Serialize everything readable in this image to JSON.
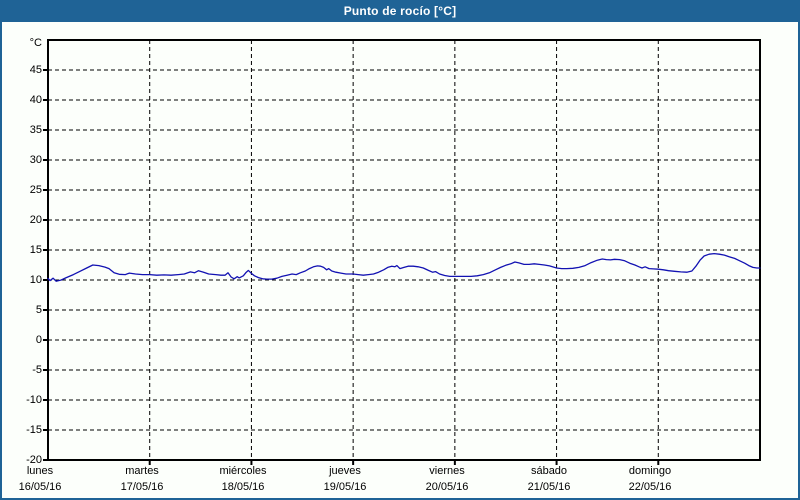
{
  "window": {
    "title": "Punto de rocío [°C]"
  },
  "colors": {
    "header_bg": "#1f6396",
    "frame_border": "#1f6396",
    "page_bg": "#fcfffb",
    "line": "#1212b2",
    "axis": "#000000",
    "title_text": "#ffffff"
  },
  "chart_data": {
    "type": "line",
    "title": "Punto de rocío [°C]",
    "y_unit_label": "°C",
    "ylabel": "",
    "xlabel": "",
    "ylim": [
      -20,
      50
    ],
    "ytick_step": 5,
    "ytick_labels": [
      45,
      40,
      35,
      30,
      25,
      20,
      15,
      10,
      5,
      0,
      -5,
      -10,
      -15,
      -20
    ],
    "xlim_days": [
      0,
      7
    ],
    "grid": "dashed horizontal every 5°C and dashed vertical at each day boundary",
    "legend": "none",
    "x_days": [
      {
        "name": "lunes",
        "date": "16/05/16"
      },
      {
        "name": "martes",
        "date": "17/05/16"
      },
      {
        "name": "miércoles",
        "date": "18/05/16"
      },
      {
        "name": "jueves",
        "date": "19/05/16"
      },
      {
        "name": "viernes",
        "date": "20/05/16"
      },
      {
        "name": "sábado",
        "date": "21/05/16"
      },
      {
        "name": "domingo",
        "date": "22/05/16"
      }
    ],
    "series": [
      {
        "name": "Punto de rocío",
        "color": "#1212b2",
        "points": [
          [
            0.0,
            10.25
          ],
          [
            0.02,
            9.9
          ],
          [
            0.05,
            10.3
          ],
          [
            0.08,
            9.8
          ],
          [
            0.13,
            10.0
          ],
          [
            0.18,
            10.4
          ],
          [
            0.25,
            10.9
          ],
          [
            0.31,
            11.4
          ],
          [
            0.38,
            12.0
          ],
          [
            0.44,
            12.5
          ],
          [
            0.5,
            12.4
          ],
          [
            0.56,
            12.15
          ],
          [
            0.6,
            11.9
          ],
          [
            0.65,
            11.2
          ],
          [
            0.7,
            10.95
          ],
          [
            0.76,
            10.9
          ],
          [
            0.8,
            11.15
          ],
          [
            0.86,
            11.0
          ],
          [
            0.93,
            10.9
          ],
          [
            1.0,
            10.9
          ],
          [
            1.07,
            10.8
          ],
          [
            1.14,
            10.85
          ],
          [
            1.21,
            10.8
          ],
          [
            1.28,
            10.9
          ],
          [
            1.34,
            11.0
          ],
          [
            1.4,
            11.35
          ],
          [
            1.44,
            11.2
          ],
          [
            1.48,
            11.55
          ],
          [
            1.53,
            11.3
          ],
          [
            1.58,
            11.0
          ],
          [
            1.65,
            10.9
          ],
          [
            1.7,
            10.8
          ],
          [
            1.74,
            10.8
          ],
          [
            1.77,
            11.2
          ],
          [
            1.8,
            10.5
          ],
          [
            1.83,
            10.2
          ],
          [
            1.86,
            10.55
          ],
          [
            1.88,
            10.35
          ],
          [
            1.92,
            10.7
          ],
          [
            1.95,
            11.3
          ],
          [
            1.97,
            11.6
          ],
          [
            2.0,
            11.1
          ],
          [
            2.03,
            10.7
          ],
          [
            2.07,
            10.4
          ],
          [
            2.11,
            10.2
          ],
          [
            2.15,
            10.15
          ],
          [
            2.2,
            10.15
          ],
          [
            2.25,
            10.3
          ],
          [
            2.3,
            10.6
          ],
          [
            2.35,
            10.8
          ],
          [
            2.4,
            11.0
          ],
          [
            2.44,
            10.9
          ],
          [
            2.48,
            11.2
          ],
          [
            2.53,
            11.5
          ],
          [
            2.57,
            11.9
          ],
          [
            2.61,
            12.2
          ],
          [
            2.65,
            12.35
          ],
          [
            2.68,
            12.3
          ],
          [
            2.71,
            12.1
          ],
          [
            2.74,
            11.7
          ],
          [
            2.76,
            11.9
          ],
          [
            2.79,
            11.5
          ],
          [
            2.83,
            11.3
          ],
          [
            2.88,
            11.15
          ],
          [
            2.93,
            11.0
          ],
          [
            3.0,
            11.0
          ],
          [
            3.05,
            10.9
          ],
          [
            3.1,
            10.8
          ],
          [
            3.15,
            10.9
          ],
          [
            3.2,
            11.0
          ],
          [
            3.25,
            11.3
          ],
          [
            3.3,
            11.7
          ],
          [
            3.34,
            12.1
          ],
          [
            3.38,
            12.3
          ],
          [
            3.41,
            12.2
          ],
          [
            3.43,
            12.4
          ],
          [
            3.46,
            11.9
          ],
          [
            3.5,
            12.1
          ],
          [
            3.54,
            12.3
          ],
          [
            3.59,
            12.3
          ],
          [
            3.64,
            12.2
          ],
          [
            3.69,
            12.0
          ],
          [
            3.74,
            11.6
          ],
          [
            3.78,
            11.3
          ],
          [
            3.81,
            11.4
          ],
          [
            3.85,
            11.0
          ],
          [
            3.9,
            10.75
          ],
          [
            3.95,
            10.6
          ],
          [
            4.0,
            10.6
          ],
          [
            4.08,
            10.6
          ],
          [
            4.16,
            10.6
          ],
          [
            4.22,
            10.7
          ],
          [
            4.28,
            10.9
          ],
          [
            4.34,
            11.2
          ],
          [
            4.4,
            11.7
          ],
          [
            4.45,
            12.1
          ],
          [
            4.5,
            12.45
          ],
          [
            4.55,
            12.7
          ],
          [
            4.59,
            13.0
          ],
          [
            4.63,
            12.85
          ],
          [
            4.68,
            12.6
          ],
          [
            4.73,
            12.6
          ],
          [
            4.78,
            12.7
          ],
          [
            4.83,
            12.6
          ],
          [
            4.88,
            12.5
          ],
          [
            4.93,
            12.35
          ],
          [
            5.0,
            12.0
          ],
          [
            5.05,
            11.9
          ],
          [
            5.1,
            11.9
          ],
          [
            5.16,
            11.95
          ],
          [
            5.22,
            12.1
          ],
          [
            5.28,
            12.4
          ],
          [
            5.34,
            12.9
          ],
          [
            5.4,
            13.3
          ],
          [
            5.45,
            13.5
          ],
          [
            5.49,
            13.4
          ],
          [
            5.53,
            13.35
          ],
          [
            5.57,
            13.45
          ],
          [
            5.62,
            13.4
          ],
          [
            5.67,
            13.2
          ],
          [
            5.72,
            12.8
          ],
          [
            5.77,
            12.5
          ],
          [
            5.81,
            12.2
          ],
          [
            5.84,
            12.0
          ],
          [
            5.87,
            12.2
          ],
          [
            5.91,
            11.9
          ],
          [
            5.95,
            11.85
          ],
          [
            6.0,
            11.8
          ],
          [
            6.05,
            11.7
          ],
          [
            6.1,
            11.55
          ],
          [
            6.16,
            11.45
          ],
          [
            6.22,
            11.35
          ],
          [
            6.28,
            11.3
          ],
          [
            6.33,
            11.5
          ],
          [
            6.37,
            12.3
          ],
          [
            6.41,
            13.3
          ],
          [
            6.45,
            14.0
          ],
          [
            6.5,
            14.3
          ],
          [
            6.55,
            14.4
          ],
          [
            6.6,
            14.3
          ],
          [
            6.65,
            14.15
          ],
          [
            6.7,
            13.85
          ],
          [
            6.75,
            13.6
          ],
          [
            6.8,
            13.2
          ],
          [
            6.85,
            12.8
          ],
          [
            6.89,
            12.4
          ],
          [
            6.93,
            12.1
          ],
          [
            6.97,
            12.0
          ],
          [
            7.0,
            12.0
          ]
        ]
      }
    ]
  }
}
